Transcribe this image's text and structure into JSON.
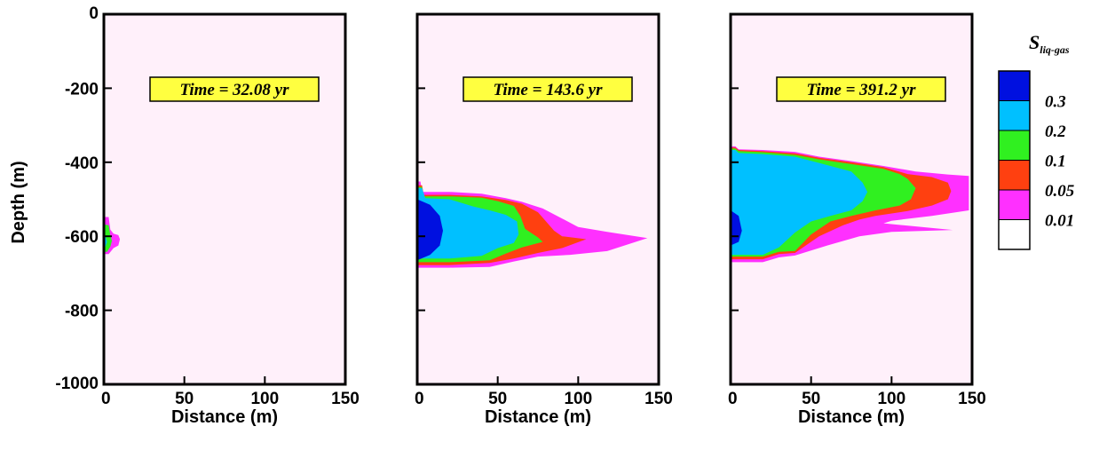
{
  "chart_data": {
    "type": "heatmap",
    "background_color": "#fff0fa",
    "xlabel": "Distance (m)",
    "ylabel": "Depth (m)",
    "xlim": [
      0,
      150
    ],
    "ylim": [
      -1000,
      0
    ],
    "x_ticks": [
      "0",
      "50",
      "100",
      "150"
    ],
    "y_ticks": [
      "0",
      "-200",
      "-400",
      "-600",
      "-800",
      "-1000"
    ],
    "legend": {
      "title_main": "S",
      "title_sub": "liq-gas",
      "levels": [
        {
          "label": "0.3",
          "color": "#0010e0"
        },
        {
          "label": "0.2",
          "color": "#00c0ff"
        },
        {
          "label": "0.1",
          "color": "#30f020"
        },
        {
          "label": "0.05",
          "color": "#ff4010"
        },
        {
          "label": "0.01",
          "color": "#ff30ff"
        },
        {
          "label": "",
          "color": "#ffffff"
        }
      ]
    },
    "panels": [
      {
        "annotation": "Time = 32.08 yr",
        "contours": [
          {
            "level": "0.01",
            "color": "#ff30ff",
            "points": [
              [
                0,
                -548
              ],
              [
                3,
                -548
              ],
              [
                4,
                -582
              ],
              [
                6,
                -593
              ],
              [
                9,
                -597
              ],
              [
                10,
                -608
              ],
              [
                9,
                -625
              ],
              [
                6,
                -632
              ],
              [
                3,
                -648
              ],
              [
                0,
                -648
              ]
            ]
          },
          {
            "level": "0.1",
            "color": "#30f020",
            "points": [
              [
                0,
                -568
              ],
              [
                3,
                -570
              ],
              [
                4,
                -598
              ],
              [
                5,
                -612
              ],
              [
                4,
                -628
              ],
              [
                2,
                -642
              ],
              [
                0,
                -642
              ]
            ]
          },
          {
            "level": "0.2",
            "color": "#00c0ff",
            "points": [
              [
                0,
                -598
              ],
              [
                1,
                -600
              ],
              [
                2,
                -615
              ],
              [
                1,
                -628
              ],
              [
                0,
                -628
              ]
            ]
          }
        ]
      },
      {
        "annotation": "Time = 143.6 yr",
        "contours": [
          {
            "level": "0.01",
            "color": "#ff30ff",
            "points": [
              [
                0,
                -452
              ],
              [
                2,
                -452
              ],
              [
                3,
                -480
              ],
              [
                20,
                -480
              ],
              [
                40,
                -485
              ],
              [
                55,
                -497
              ],
              [
                65,
                -507
              ],
              [
                78,
                -525
              ],
              [
                90,
                -552
              ],
              [
                100,
                -575
              ],
              [
                118,
                -588
              ],
              [
                143,
                -605
              ],
              [
                118,
                -640
              ],
              [
                95,
                -650
              ],
              [
                75,
                -655
              ],
              [
                60,
                -668
              ],
              [
                45,
                -683
              ],
              [
                20,
                -685
              ],
              [
                0,
                -685
              ]
            ]
          },
          {
            "level": "0.05",
            "color": "#ff4010",
            "points": [
              [
                0,
                -462
              ],
              [
                3,
                -462
              ],
              [
                4,
                -488
              ],
              [
                20,
                -488
              ],
              [
                40,
                -492
              ],
              [
                55,
                -502
              ],
              [
                65,
                -512
              ],
              [
                75,
                -535
              ],
              [
                80,
                -560
              ],
              [
                85,
                -585
              ],
              [
                90,
                -600
              ],
              [
                105,
                -608
              ],
              [
                90,
                -632
              ],
              [
                75,
                -645
              ],
              [
                60,
                -660
              ],
              [
                45,
                -672
              ],
              [
                20,
                -678
              ],
              [
                0,
                -678
              ]
            ]
          },
          {
            "level": "0.1",
            "color": "#30f020",
            "points": [
              [
                0,
                -467
              ],
              [
                3,
                -467
              ],
              [
                4,
                -492
              ],
              [
                20,
                -492
              ],
              [
                40,
                -496
              ],
              [
                50,
                -505
              ],
              [
                60,
                -518
              ],
              [
                64,
                -545
              ],
              [
                67,
                -580
              ],
              [
                75,
                -603
              ],
              [
                78,
                -615
              ],
              [
                65,
                -630
              ],
              [
                55,
                -647
              ],
              [
                45,
                -665
              ],
              [
                20,
                -670
              ],
              [
                0,
                -670
              ]
            ]
          },
          {
            "level": "0.2",
            "color": "#00c0ff",
            "points": [
              [
                0,
                -470
              ],
              [
                3,
                -470
              ],
              [
                5,
                -497
              ],
              [
                20,
                -500
              ],
              [
                35,
                -520
              ],
              [
                45,
                -530
              ],
              [
                55,
                -542
              ],
              [
                62,
                -560
              ],
              [
                63,
                -595
              ],
              [
                60,
                -618
              ],
              [
                50,
                -632
              ],
              [
                40,
                -653
              ],
              [
                20,
                -660
              ],
              [
                0,
                -660
              ]
            ]
          },
          {
            "level": "0.3",
            "color": "#0010e0",
            "points": [
              [
                0,
                -500
              ],
              [
                8,
                -515
              ],
              [
                14,
                -545
              ],
              [
                16,
                -585
              ],
              [
                14,
                -625
              ],
              [
                8,
                -650
              ],
              [
                0,
                -665
              ]
            ]
          }
        ]
      },
      {
        "annotation": "Time = 391.2 yr",
        "contours": [
          {
            "level": "0.01",
            "color": "#ff30ff",
            "points": [
              [
                0,
                -357
              ],
              [
                3,
                -357
              ],
              [
                5,
                -365
              ],
              [
                20,
                -367
              ],
              [
                40,
                -372
              ],
              [
                55,
                -385
              ],
              [
                75,
                -397
              ],
              [
                95,
                -410
              ],
              [
                115,
                -425
              ],
              [
                135,
                -433
              ],
              [
                148,
                -437
              ],
              [
                148,
                -530
              ],
              [
                125,
                -545
              ],
              [
                100,
                -558
              ],
              [
                95,
                -565
              ],
              [
                138,
                -583
              ],
              [
                100,
                -588
              ],
              [
                80,
                -600
              ],
              [
                60,
                -625
              ],
              [
                40,
                -652
              ],
              [
                30,
                -657
              ],
              [
                20,
                -670
              ],
              [
                0,
                -670
              ]
            ]
          },
          {
            "level": "0.05",
            "color": "#ff4010",
            "points": [
              [
                0,
                -360
              ],
              [
                3,
                -360
              ],
              [
                5,
                -367
              ],
              [
                20,
                -370
              ],
              [
                40,
                -376
              ],
              [
                55,
                -388
              ],
              [
                75,
                -400
              ],
              [
                95,
                -413
              ],
              [
                110,
                -432
              ],
              [
                125,
                -440
              ],
              [
                135,
                -455
              ],
              [
                137,
                -478
              ],
              [
                135,
                -500
              ],
              [
                125,
                -517
              ],
              [
                110,
                -532
              ],
              [
                90,
                -545
              ],
              [
                80,
                -555
              ],
              [
                70,
                -570
              ],
              [
                55,
                -600
              ],
              [
                40,
                -645
              ],
              [
                30,
                -648
              ],
              [
                20,
                -662
              ],
              [
                0,
                -662
              ]
            ]
          },
          {
            "level": "0.1",
            "color": "#30f020",
            "points": [
              [
                0,
                -363
              ],
              [
                3,
                -363
              ],
              [
                5,
                -370
              ],
              [
                20,
                -373
              ],
              [
                40,
                -380
              ],
              [
                55,
                -392
              ],
              [
                75,
                -405
              ],
              [
                95,
                -418
              ],
              [
                105,
                -432
              ],
              [
                110,
                -445
              ],
              [
                115,
                -470
              ],
              [
                112,
                -500
              ],
              [
                105,
                -517
              ],
              [
                90,
                -530
              ],
              [
                75,
                -545
              ],
              [
                62,
                -560
              ],
              [
                50,
                -595
              ],
              [
                40,
                -640
              ],
              [
                30,
                -642
              ],
              [
                20,
                -655
              ],
              [
                0,
                -655
              ]
            ]
          },
          {
            "level": "0.2",
            "color": "#00c0ff",
            "points": [
              [
                0,
                -367
              ],
              [
                3,
                -367
              ],
              [
                5,
                -375
              ],
              [
                20,
                -378
              ],
              [
                40,
                -385
              ],
              [
                55,
                -402
              ],
              [
                75,
                -425
              ],
              [
                82,
                -455
              ],
              [
                85,
                -480
              ],
              [
                82,
                -505
              ],
              [
                75,
                -530
              ],
              [
                62,
                -545
              ],
              [
                50,
                -560
              ],
              [
                40,
                -590
              ],
              [
                30,
                -630
              ],
              [
                20,
                -650
              ],
              [
                0,
                -650
              ]
            ]
          },
          {
            "level": "0.3",
            "color": "#0010e0",
            "points": [
              [
                0,
                -530
              ],
              [
                5,
                -545
              ],
              [
                7,
                -585
              ],
              [
                5,
                -615
              ],
              [
                0,
                -625
              ]
            ]
          }
        ]
      }
    ]
  }
}
